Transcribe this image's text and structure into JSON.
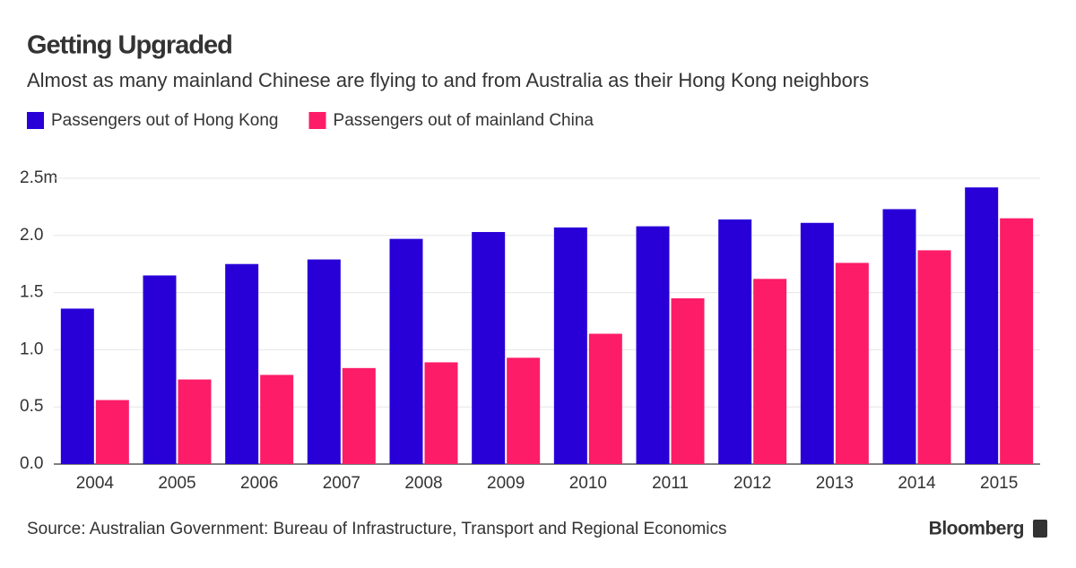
{
  "chart_data": {
    "type": "bar",
    "title": "Getting Upgraded",
    "subtitle": "Almost as many mainland Chinese are flying to and from Australia as their Hong Kong neighbors",
    "categories": [
      "2004",
      "2005",
      "2006",
      "2007",
      "2008",
      "2009",
      "2010",
      "2011",
      "2012",
      "2013",
      "2014",
      "2015"
    ],
    "series": [
      {
        "name": "Passengers out of Hong Kong",
        "color": "#2800d7",
        "values": [
          1.36,
          1.65,
          1.75,
          1.79,
          1.97,
          2.03,
          2.07,
          2.08,
          2.14,
          2.11,
          2.23,
          2.42
        ]
      },
      {
        "name": "Passengers out of mainland China",
        "color": "#fd1c67",
        "values": [
          0.56,
          0.74,
          0.78,
          0.84,
          0.89,
          0.93,
          1.14,
          1.45,
          1.62,
          1.76,
          1.87,
          2.15
        ]
      }
    ],
    "ylim": [
      0,
      2.5
    ],
    "yticks": [
      {
        "value": 0,
        "label": "0.0"
      },
      0.5,
      {
        "value": 1,
        "label": "1.0"
      },
      1.5,
      {
        "value": 2,
        "label": "2.0"
      },
      {
        "value": 2.5,
        "label": "2.5m"
      }
    ],
    "grid": true,
    "legend": "top-left",
    "source": "Source: Australian Government: Bureau of Infrastructure, Transport and Regional Economics",
    "brand": "Bloomberg"
  }
}
